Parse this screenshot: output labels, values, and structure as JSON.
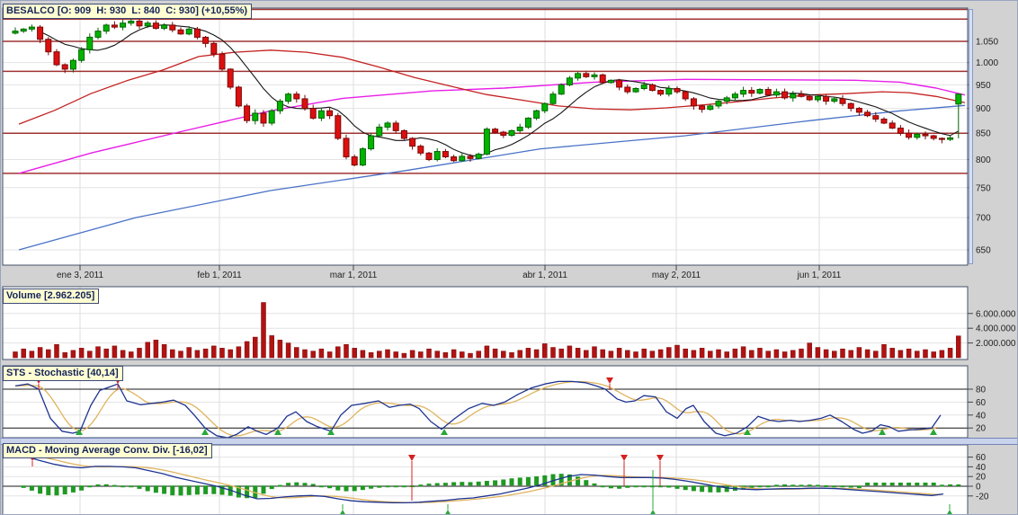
{
  "window": {
    "title": "BESALCO chart"
  },
  "panels": {
    "price": {
      "header": "BESALCO [O: 909  H: 930  L: 840  C: 930] (+10,55%)"
    },
    "volume": {
      "header": "Volume [2.962.205]"
    },
    "stochastic": {
      "header": "STS - Stochastic [40,14]"
    },
    "macd": {
      "header": "MACD - Moving Average Conv. Div. [-16,02]"
    }
  },
  "time_axis": {
    "labels": [
      {
        "text": "ene 3, 2011",
        "x": 88
      },
      {
        "text": "feb 1, 2011",
        "x": 243
      },
      {
        "text": "mar 1, 2011",
        "x": 392
      },
      {
        "text": "abr 1, 2011",
        "x": 605
      },
      {
        "text": "may 2, 2011",
        "x": 751
      },
      {
        "text": "jun 1, 2011",
        "x": 910
      }
    ]
  },
  "colors": {
    "up_fill": "#00b400",
    "up_border": "#006400",
    "down_fill": "#dd0f0f",
    "down_border": "#7a0808",
    "volume_bar": "#b01212",
    "sr_line": "#a03232",
    "ma_black": "#161616",
    "ma_red": "#c42222",
    "ma_magenta": "#e81ee8",
    "ma_blue": "#4a72c8",
    "osc_line": "#1e3390",
    "osc_signal": "#dfb45e",
    "histogram": "#1f9922",
    "buy": "#28a838",
    "sell": "#d42020",
    "grid_h": "#e3e3e3",
    "grid_v": "#dcdcdc",
    "level_line": "#1a1a1a",
    "panel_border": "#44506a",
    "plot_bg": "#ffffff",
    "gutter_bg": "#d2d2d2",
    "header_bg": "#ffffd2",
    "header_border": "#3c4a78",
    "header_text": "#14235a"
  },
  "chart_data": [
    {
      "type": "candlestick",
      "symbol": "BESALCO",
      "scale": "log",
      "title": "BESALCO [O: 909  H: 930  L: 840  C: 930] (+10,55%)",
      "last_candle": {
        "open": 909,
        "high": 930,
        "low": 840,
        "close": 930,
        "change_pct": "+10,55%"
      },
      "y_ticks": [
        {
          "label": "1.050",
          "p": 1050
        },
        {
          "label": "1.000",
          "p": 1000
        },
        {
          "label": "950",
          "p": 950
        },
        {
          "label": "900",
          "p": 900
        },
        {
          "label": "850",
          "p": 850
        },
        {
          "label": "800",
          "p": 800
        },
        {
          "label": "750",
          "p": 750
        },
        {
          "label": "700",
          "p": 700
        },
        {
          "label": "650",
          "p": 650
        }
      ],
      "support_resistance": [
        1130,
        1105,
        1050,
        980,
        850,
        775
      ],
      "closes": [
        1075,
        1080,
        1085,
        1055,
        1025,
        995,
        985,
        1005,
        1030,
        1060,
        1075,
        1090,
        1085,
        1095,
        1100,
        1088,
        1095,
        1082,
        1090,
        1078,
        1068,
        1080,
        1060,
        1045,
        1020,
        985,
        945,
        905,
        875,
        890,
        870,
        895,
        915,
        930,
        920,
        900,
        880,
        895,
        885,
        840,
        805,
        790,
        820,
        845,
        862,
        870,
        855,
        840,
        825,
        812,
        800,
        815,
        805,
        798,
        806,
        802,
        810,
        858,
        852,
        846,
        855,
        862,
        880,
        895,
        910,
        930,
        950,
        965,
        975,
        968,
        972,
        955,
        960,
        945,
        935,
        942,
        950,
        938,
        930,
        942,
        935,
        920,
        905,
        898,
        905,
        915,
        922,
        930,
        938,
        932,
        940,
        928,
        935,
        922,
        930,
        925,
        918,
        925,
        915,
        920,
        910,
        900,
        892,
        885,
        878,
        870,
        860,
        850,
        842,
        848,
        845,
        840,
        838,
        841,
        930
      ],
      "moving_averages": {
        "red": [
          [
            20,
            868
          ],
          [
            60,
            896
          ],
          [
            100,
            931
          ],
          [
            140,
            959
          ],
          [
            180,
            983
          ],
          [
            220,
            1014
          ],
          [
            260,
            1024
          ],
          [
            300,
            1029
          ],
          [
            340,
            1024
          ],
          [
            380,
            1012
          ],
          [
            420,
            990
          ],
          [
            460,
            966
          ],
          [
            500,
            947
          ],
          [
            540,
            929
          ],
          [
            580,
            917
          ],
          [
            620,
            905
          ],
          [
            660,
            899
          ],
          [
            700,
            897
          ],
          [
            740,
            901
          ],
          [
            780,
            907
          ],
          [
            820,
            914
          ],
          [
            860,
            922
          ],
          [
            900,
            928
          ],
          [
            940,
            931
          ],
          [
            980,
            935
          ],
          [
            1010,
            933
          ],
          [
            1040,
            925
          ],
          [
            1072,
            912
          ]
        ],
        "magenta": [
          [
            20,
            775
          ],
          [
            100,
            812
          ],
          [
            200,
            853
          ],
          [
            300,
            895
          ],
          [
            380,
            921
          ],
          [
            480,
            937
          ],
          [
            560,
            943
          ],
          [
            660,
            956
          ],
          [
            760,
            962
          ],
          [
            950,
            960
          ],
          [
            1000,
            956
          ],
          [
            1040,
            943
          ],
          [
            1072,
            928
          ]
        ],
        "blue": [
          [
            20,
            650
          ],
          [
            150,
            700
          ],
          [
            300,
            745
          ],
          [
            450,
            780
          ],
          [
            600,
            820
          ],
          [
            760,
            845
          ],
          [
            900,
            875
          ],
          [
            1000,
            895
          ],
          [
            1072,
            906
          ]
        ]
      }
    },
    {
      "type": "bar",
      "name": "Volume",
      "current": "2.962.205",
      "y_ticks": [
        {
          "label": "6.000.000",
          "v": 6
        },
        {
          "label": "4.000.000",
          "v": 4
        },
        {
          "label": "2.000.000",
          "v": 2
        }
      ],
      "values_millions": [
        0.8,
        1.2,
        0.9,
        1.4,
        1.1,
        1.8,
        0.7,
        1.0,
        1.3,
        0.9,
        1.5,
        1.2,
        1.6,
        1.0,
        0.8,
        1.3,
        2.1,
        2.4,
        1.8,
        1.1,
        0.9,
        1.4,
        1.0,
        1.2,
        1.6,
        1.3,
        1.1,
        1.5,
        2.2,
        2.8,
        7.5,
        3.0,
        2.4,
        2.0,
        1.4,
        1.1,
        0.9,
        1.2,
        0.8,
        1.5,
        1.8,
        1.3,
        1.0,
        0.7,
        0.9,
        1.1,
        0.8,
        0.6,
        1.0,
        0.8,
        1.2,
        0.9,
        0.7,
        1.1,
        0.8,
        0.6,
        0.9,
        1.6,
        1.2,
        0.9,
        0.7,
        1.0,
        1.3,
        1.1,
        1.9,
        1.4,
        1.2,
        1.6,
        1.3,
        1.0,
        1.5,
        1.1,
        0.9,
        1.3,
        1.0,
        0.8,
        1.2,
        0.9,
        1.1,
        1.4,
        1.7,
        1.2,
        1.0,
        1.3,
        0.9,
        1.1,
        0.8,
        1.2,
        1.5,
        1.0,
        1.3,
        0.9,
        1.1,
        0.8,
        1.0,
        1.2,
        2.0,
        1.4,
        1.1,
        0.9,
        1.2,
        1.0,
        1.4,
        1.1,
        0.9,
        1.8,
        1.3,
        1.0,
        1.2,
        0.9,
        1.1,
        0.8,
        1.0,
        1.3,
        2.96
      ]
    },
    {
      "type": "line",
      "name": "STS - Stochastic",
      "current": "40,14",
      "levels": [
        80,
        20
      ],
      "y_ticks": [
        {
          "label": "80",
          "v": 80
        },
        {
          "label": "60",
          "v": 60
        },
        {
          "label": "40",
          "v": 40
        },
        {
          "label": "20",
          "v": 20
        }
      ],
      "k_points": [
        [
          16,
          85
        ],
        [
          30,
          88
        ],
        [
          42,
          80
        ],
        [
          55,
          35
        ],
        [
          68,
          15
        ],
        [
          80,
          12
        ],
        [
          88,
          15
        ],
        [
          100,
          55
        ],
        [
          110,
          78
        ],
        [
          122,
          84
        ],
        [
          130,
          88
        ],
        [
          140,
          62
        ],
        [
          155,
          56
        ],
        [
          168,
          58
        ],
        [
          180,
          60
        ],
        [
          192,
          63
        ],
        [
          205,
          55
        ],
        [
          215,
          40
        ],
        [
          227,
          20
        ],
        [
          240,
          8
        ],
        [
          252,
          5
        ],
        [
          262,
          10
        ],
        [
          275,
          22
        ],
        [
          285,
          15
        ],
        [
          295,
          10
        ],
        [
          308,
          20
        ],
        [
          318,
          38
        ],
        [
          328,
          45
        ],
        [
          340,
          30
        ],
        [
          352,
          22
        ],
        [
          367,
          15
        ],
        [
          378,
          40
        ],
        [
          390,
          55
        ],
        [
          405,
          58
        ],
        [
          420,
          62
        ],
        [
          432,
          52
        ],
        [
          443,
          55
        ],
        [
          455,
          57
        ],
        [
          465,
          50
        ],
        [
          478,
          30
        ],
        [
          490,
          18
        ],
        [
          505,
          35
        ],
        [
          520,
          50
        ],
        [
          535,
          58
        ],
        [
          548,
          55
        ],
        [
          560,
          60
        ],
        [
          575,
          72
        ],
        [
          590,
          82
        ],
        [
          605,
          88
        ],
        [
          620,
          92
        ],
        [
          635,
          92
        ],
        [
          650,
          90
        ],
        [
          662,
          85
        ],
        [
          672,
          80
        ],
        [
          685,
          65
        ],
        [
          695,
          60
        ],
        [
          705,
          62
        ],
        [
          715,
          70
        ],
        [
          728,
          68
        ],
        [
          740,
          45
        ],
        [
          752,
          35
        ],
        [
          762,
          50
        ],
        [
          770,
          55
        ],
        [
          782,
          30
        ],
        [
          795,
          12
        ],
        [
          805,
          8
        ],
        [
          818,
          12
        ],
        [
          830,
          22
        ],
        [
          842,
          38
        ],
        [
          855,
          32
        ],
        [
          865,
          30
        ],
        [
          878,
          32
        ],
        [
          888,
          30
        ],
        [
          900,
          32
        ],
        [
          912,
          35
        ],
        [
          922,
          40
        ],
        [
          935,
          30
        ],
        [
          948,
          18
        ],
        [
          958,
          12
        ],
        [
          968,
          15
        ],
        [
          978,
          25
        ],
        [
          988,
          22
        ],
        [
          998,
          15
        ],
        [
          1010,
          17
        ],
        [
          1022,
          18
        ],
        [
          1035,
          20
        ],
        [
          1045,
          40
        ]
      ],
      "signals": {
        "sell_x": [
          42,
          130,
          677
        ],
        "buy_x": [
          87,
          227,
          308,
          367,
          493,
          830,
          980,
          1037
        ]
      }
    },
    {
      "type": "line+histogram",
      "name": "MACD - Moving Average Conv. Div.",
      "current": "-16,02",
      "y_ticks": [
        {
          "label": "60",
          "v": 60
        },
        {
          "label": "40",
          "v": 40
        },
        {
          "label": "20",
          "v": 20
        },
        {
          "label": "0",
          "v": 0
        },
        {
          "label": "-20",
          "v": -20
        }
      ],
      "macd_points": [
        [
          16,
          64
        ],
        [
          30,
          60
        ],
        [
          45,
          52
        ],
        [
          60,
          45
        ],
        [
          75,
          40
        ],
        [
          90,
          38
        ],
        [
          105,
          41
        ],
        [
          120,
          41
        ],
        [
          135,
          40
        ],
        [
          150,
          38
        ],
        [
          165,
          32
        ],
        [
          180,
          26
        ],
        [
          195,
          18
        ],
        [
          210,
          12
        ],
        [
          225,
          6
        ],
        [
          240,
          0
        ],
        [
          255,
          -8
        ],
        [
          270,
          -18
        ],
        [
          285,
          -26
        ],
        [
          300,
          -25
        ],
        [
          315,
          -22
        ],
        [
          330,
          -20
        ],
        [
          345,
          -19
        ],
        [
          360,
          -21
        ],
        [
          375,
          -26
        ],
        [
          390,
          -30
        ],
        [
          405,
          -32
        ],
        [
          420,
          -33
        ],
        [
          435,
          -34
        ],
        [
          450,
          -34
        ],
        [
          465,
          -33
        ],
        [
          480,
          -31
        ],
        [
          495,
          -29
        ],
        [
          510,
          -26
        ],
        [
          525,
          -24
        ],
        [
          540,
          -20
        ],
        [
          555,
          -16
        ],
        [
          570,
          -10
        ],
        [
          585,
          -4
        ],
        [
          600,
          3
        ],
        [
          615,
          12
        ],
        [
          630,
          20
        ],
        [
          645,
          24
        ],
        [
          660,
          23
        ],
        [
          675,
          20
        ],
        [
          690,
          18
        ],
        [
          705,
          18
        ],
        [
          720,
          18
        ],
        [
          735,
          17
        ],
        [
          750,
          14
        ],
        [
          765,
          10
        ],
        [
          780,
          5
        ],
        [
          795,
          0
        ],
        [
          810,
          -4
        ],
        [
          825,
          -6
        ],
        [
          840,
          -7
        ],
        [
          855,
          -6
        ],
        [
          870,
          -5
        ],
        [
          885,
          -5
        ],
        [
          900,
          -4
        ],
        [
          915,
          -4
        ],
        [
          930,
          -5
        ],
        [
          945,
          -7
        ],
        [
          960,
          -9
        ],
        [
          975,
          -11
        ],
        [
          990,
          -13
        ],
        [
          1005,
          -15
        ],
        [
          1020,
          -17
        ],
        [
          1035,
          -19
        ],
        [
          1048,
          -16
        ]
      ],
      "hist_override": [
        [
          960,
          1045,
          6
        ]
      ],
      "signals": {
        "sell": [
          {
            "x": 35,
            "stem": 6
          },
          {
            "x": 457,
            "stem": 44
          },
          {
            "x": 693,
            "stem": 28
          },
          {
            "x": 733,
            "stem": 28
          }
        ],
        "buy": [
          {
            "x": 380,
            "stem": 6
          },
          {
            "x": 497,
            "stem": 6
          },
          {
            "x": 725,
            "stem": 44
          },
          {
            "x": 1055,
            "stem": 6
          }
        ]
      }
    }
  ]
}
